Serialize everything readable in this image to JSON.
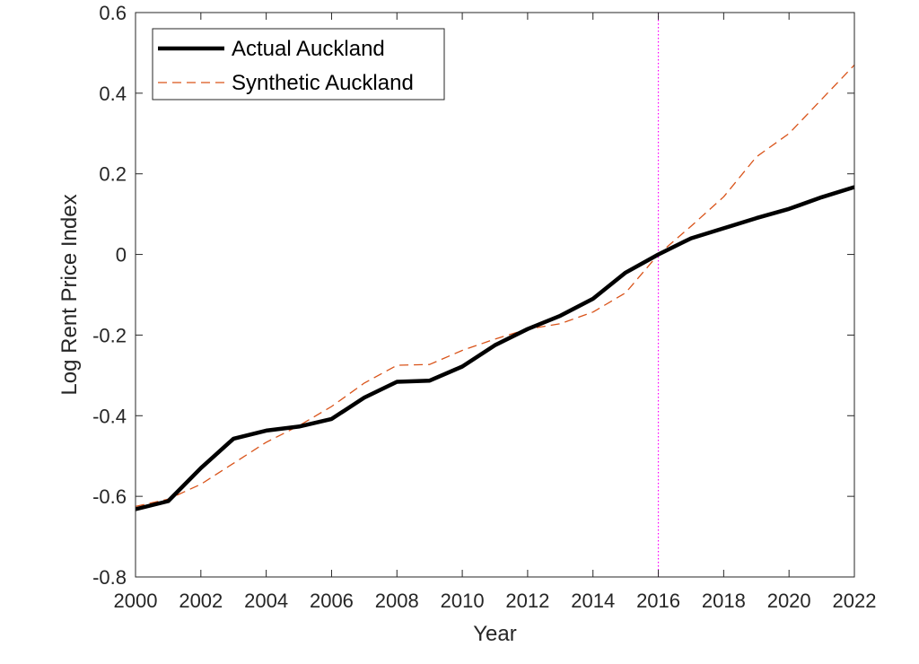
{
  "chart_data": {
    "type": "line",
    "title": "",
    "xlabel": "Year",
    "ylabel": "Log Rent Price Index",
    "xlim": [
      2000,
      2022
    ],
    "ylim": [
      -0.8,
      0.6
    ],
    "x_ticks": [
      2000,
      2002,
      2004,
      2006,
      2008,
      2010,
      2012,
      2014,
      2016,
      2018,
      2020,
      2022
    ],
    "x_tick_labels": [
      "2000",
      "2002",
      "2004",
      "2006",
      "2008",
      "2010",
      "2012",
      "2014",
      "2016",
      "2018",
      "2020",
      "2022"
    ],
    "y_ticks": [
      -0.8,
      -0.6,
      -0.4,
      -0.2,
      0,
      0.2,
      0.4,
      0.6
    ],
    "y_tick_labels": [
      "-0.8",
      "-0.6",
      "-0.4",
      "-0.2",
      "0",
      "0.2",
      "0.4",
      "0.6"
    ],
    "x": [
      2000,
      2001,
      2002,
      2003,
      2004,
      2005,
      2006,
      2007,
      2008,
      2009,
      2010,
      2011,
      2012,
      2013,
      2014,
      2015,
      2016,
      2017,
      2018,
      2019,
      2020,
      2021,
      2022
    ],
    "series": [
      {
        "name": "Actual Auckland",
        "color": "#000000",
        "style": "solid",
        "values": [
          -0.632,
          -0.612,
          -0.53,
          -0.457,
          -0.437,
          -0.427,
          -0.408,
          -0.355,
          -0.316,
          -0.313,
          -0.278,
          -0.225,
          -0.185,
          -0.152,
          -0.11,
          -0.045,
          0.0,
          0.04,
          0.065,
          0.09,
          0.113,
          0.142,
          0.167
        ]
      },
      {
        "name": "Synthetic Auckland",
        "color": "#D95319",
        "style": "dashed",
        "values": [
          -0.625,
          -0.607,
          -0.57,
          -0.518,
          -0.466,
          -0.425,
          -0.377,
          -0.319,
          -0.275,
          -0.273,
          -0.238,
          -0.21,
          -0.185,
          -0.172,
          -0.143,
          -0.095,
          0.0,
          0.07,
          0.143,
          0.242,
          0.3,
          0.385,
          0.47
        ]
      }
    ],
    "reference_line": {
      "x": 2016,
      "color": "#FF00FF",
      "style": "dotted"
    },
    "legend_position": "top-left",
    "box": true,
    "grid": false
  }
}
